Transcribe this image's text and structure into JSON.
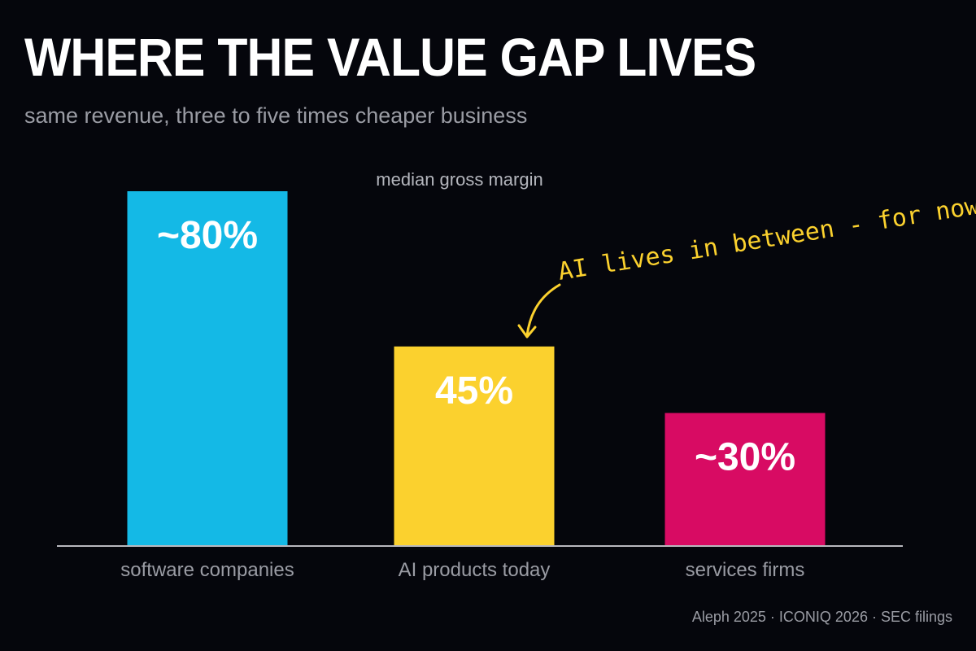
{
  "header": {
    "title": "WHERE THE VALUE GAP LIVES",
    "subtitle": "same revenue, three to five times cheaper business"
  },
  "footer": {
    "source": "Aleph 2025 · ICONIQ 2026 · SEC filings"
  },
  "chart_data": {
    "type": "bar",
    "title": "median gross margin",
    "categories": [
      "software companies",
      "AI products today",
      "services firms"
    ],
    "values": [
      80,
      45,
      30
    ],
    "data_labels": [
      "~80%",
      "45%",
      "~30%"
    ],
    "colors": [
      "#14b9e6",
      "#fbd12e",
      "#d80b63"
    ],
    "ylim": [
      0,
      80
    ],
    "grid": false,
    "legend": "none",
    "annotation": {
      "text": "AI lives in between - for now",
      "target_category": "AI products today",
      "color": "#fbd12e"
    },
    "axis_color": "#b8b8be",
    "label_color": "#9a9ca4"
  }
}
